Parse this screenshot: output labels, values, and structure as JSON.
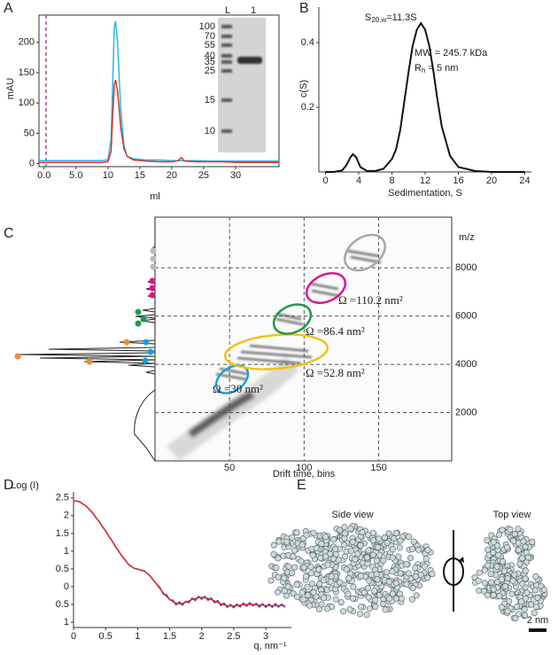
{
  "panel_labels": [
    "A",
    "B",
    "C",
    "D",
    "E"
  ],
  "gel": {
    "lanes": [
      "L",
      "1"
    ],
    "markers": [
      100,
      70,
      55,
      40,
      35,
      25,
      15,
      10
    ]
  },
  "chart_data": [
    {
      "type": "line",
      "xlabel": "ml",
      "ylabel": "mAU",
      "xlim": [
        -0.8,
        36.8
      ],
      "ylim": [
        -5,
        245
      ],
      "xticks": [
        {
          "value": 0,
          "label": "0.0"
        },
        {
          "value": 5,
          "label": "5.0"
        },
        10,
        15,
        20,
        25,
        30
      ],
      "yticks": [
        0,
        50,
        100,
        150,
        200
      ],
      "marker_line": {
        "x": 0.3,
        "color": "#c0408f"
      },
      "x": [
        -0.8,
        0,
        2,
        4,
        6,
        8,
        9,
        10,
        10.5,
        10.8,
        11,
        11.2,
        11.5,
        12,
        12.5,
        13,
        14,
        16,
        18,
        20,
        21,
        21.5,
        22,
        24,
        26,
        28,
        30,
        32,
        34,
        36.8
      ],
      "series": [
        {
          "color": "#29b6e8",
          "values": [
            5,
            5,
            5,
            5,
            5,
            5,
            5,
            6,
            40,
            150,
            225,
            235,
            200,
            90,
            30,
            12,
            8,
            6,
            6,
            5,
            5,
            5,
            5,
            5,
            4,
            4,
            4,
            4,
            4,
            4
          ]
        },
        {
          "color": "#d9342b",
          "values": [
            2,
            2,
            2,
            2,
            2,
            2,
            2,
            3,
            20,
            90,
            130,
            138,
            120,
            60,
            25,
            12,
            6,
            4,
            3,
            3,
            5,
            10,
            4,
            3,
            3,
            3,
            2,
            2,
            2,
            2
          ]
        }
      ]
    },
    {
      "type": "line",
      "xlabel": "Sedimentation, S",
      "ylabel": "c(S)",
      "xlim": [
        -0.8,
        24.8
      ],
      "ylim": [
        0,
        0.51
      ],
      "xticks": [
        0,
        4,
        8,
        12,
        16,
        20,
        24
      ],
      "yticks": [
        0.2,
        0.4
      ],
      "annotations": [
        [
          "S",
          "20,w",
          "=11.3S"
        ],
        [
          "MW = 245.7 kDa"
        ],
        [
          "R",
          "h",
          " = 5 nm"
        ]
      ],
      "x": [
        0,
        1,
        2,
        2.5,
        3,
        3.3,
        3.7,
        4.2,
        5,
        6,
        7,
        8,
        8.5,
        9,
        9.5,
        10,
        10.5,
        11,
        11.5,
        12,
        12.5,
        13,
        13.5,
        14,
        15,
        16,
        18,
        20,
        22,
        24
      ],
      "series": [
        {
          "color": "#111111",
          "values": [
            0,
            0,
            0.005,
            0.02,
            0.045,
            0.055,
            0.045,
            0.015,
            0.003,
            0.003,
            0.01,
            0.04,
            0.07,
            0.13,
            0.22,
            0.31,
            0.39,
            0.44,
            0.46,
            0.44,
            0.39,
            0.31,
            0.22,
            0.14,
            0.05,
            0.015,
            0.003,
            0,
            0,
            0
          ]
        }
      ]
    },
    {
      "type": "mobility",
      "xlabel": "Drift time, bins",
      "ylabel": "m/z",
      "xlim": [
        0,
        199
      ],
      "ylim": [
        0,
        10100
      ],
      "xticks": [
        50,
        100,
        150
      ],
      "yticks": [
        2000,
        4000,
        6000,
        8000
      ],
      "grid": true,
      "annotations": [
        {
          "text": "Ω =30 nm²",
          "color": "#1aa0d8"
        },
        {
          "text": "Ω =52.8 nm²",
          "color": "#f2c21b"
        },
        {
          "text": "Ω =86.4 nm²",
          "color": "#1f9a4a"
        },
        {
          "text": "Ω =110.2 nm²",
          "color": "#d6198a"
        },
        {
          "color": "#a8a8a8"
        }
      ]
    },
    {
      "type": "line",
      "xlabel": "q, nm⁻¹",
      "ylabel": "Log (I)",
      "xlim": [
        0,
        3.4
      ],
      "ylim": [
        -1.15,
        2.67
      ],
      "xticks": [
        0,
        0.5,
        1,
        1.5,
        2,
        2.5,
        3
      ],
      "yticks": [
        2.5,
        2,
        1.5,
        1,
        0.5,
        0,
        {
          "value": -0.5,
          "label": "0.5"
        },
        {
          "value": -1,
          "label": "1"
        }
      ],
      "x": [
        0,
        0.05,
        0.1,
        0.15,
        0.2,
        0.25,
        0.3,
        0.35,
        0.4,
        0.45,
        0.5,
        0.55,
        0.6,
        0.65,
        0.7,
        0.75,
        0.8,
        0.85,
        0.9,
        0.95,
        1,
        1.05,
        1.1,
        1.15,
        1.2,
        1.25,
        1.3,
        1.35,
        1.4,
        1.45,
        1.5,
        1.55,
        1.6,
        1.65,
        1.7,
        1.75,
        1.8,
        1.85,
        1.9,
        1.95,
        2,
        2.05,
        2.1,
        2.15,
        2.2,
        2.25,
        2.3,
        2.35,
        2.4,
        2.45,
        2.5,
        2.55,
        2.6,
        2.65,
        2.7,
        2.75,
        2.8,
        2.85,
        2.9,
        2.95,
        3,
        3.05,
        3.1,
        3.15,
        3.2,
        3.25,
        3.3
      ],
      "series": [
        {
          "color": "#5a3a9a",
          "values": [
            2.42,
            2.41,
            2.39,
            2.32,
            2.27,
            2.16,
            2.08,
            1.94,
            1.84,
            1.69,
            1.58,
            1.42,
            1.3,
            1.14,
            1.02,
            0.87,
            0.77,
            0.64,
            0.58,
            0.51,
            0.5,
            0.46,
            0.45,
            0.37,
            0.3,
            0.17,
            0.07,
            -0.03,
            -0.21,
            -0.22,
            -0.37,
            -0.38,
            -0.51,
            -0.43,
            -0.52,
            -0.41,
            -0.45,
            -0.32,
            -0.39,
            -0.27,
            -0.35,
            -0.27,
            -0.38,
            -0.32,
            -0.45,
            -0.39,
            -0.53,
            -0.46,
            -0.58,
            -0.5,
            -0.59,
            -0.49,
            -0.57,
            -0.46,
            -0.55,
            -0.45,
            -0.54,
            -0.47,
            -0.57,
            -0.48,
            -0.58,
            -0.49,
            -0.58,
            -0.48,
            -0.57,
            -0.49,
            -0.58
          ]
        },
        {
          "color": "#d9342b",
          "values": [
            2.42,
            2.41,
            2.38,
            2.33,
            2.26,
            2.17,
            2.07,
            1.95,
            1.83,
            1.7,
            1.57,
            1.43,
            1.29,
            1.15,
            1.01,
            0.88,
            0.76,
            0.65,
            0.57,
            0.52,
            0.49,
            0.47,
            0.44,
            0.38,
            0.29,
            0.18,
            0.06,
            -0.06,
            -0.17,
            -0.27,
            -0.35,
            -0.42,
            -0.46,
            -0.48,
            -0.47,
            -0.44,
            -0.4,
            -0.36,
            -0.33,
            -0.31,
            -0.3,
            -0.31,
            -0.33,
            -0.36,
            -0.4,
            -0.44,
            -0.48,
            -0.51,
            -0.53,
            -0.54,
            -0.54,
            -0.53,
            -0.52,
            -0.51,
            -0.5,
            -0.5,
            -0.5,
            -0.51,
            -0.52,
            -0.52,
            -0.53,
            -0.53,
            -0.53,
            -0.53,
            -0.53,
            -0.53,
            -0.53
          ]
        }
      ]
    }
  ],
  "models": {
    "views": [
      "Side view",
      "Top view"
    ],
    "scale_bar": "2 nm"
  }
}
